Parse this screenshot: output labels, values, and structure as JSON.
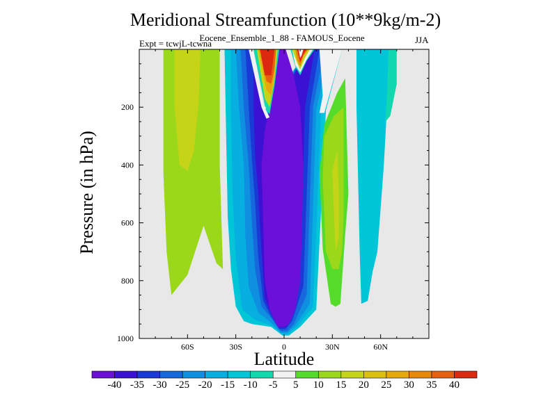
{
  "chart_data": {
    "type": "contour",
    "title": "Meridional Streamfunction (10**9kg/m-2)",
    "subtitle": "Eocene_Ensemble_1_88 - FAMOUS_Eocene",
    "expt_label": "Expt = tcwjL-tcwna",
    "season": "JJA",
    "xlabel": "Latitude",
    "ylabel": "Pressure (in hPa)",
    "xlim": [
      -90,
      90
    ],
    "ylim": [
      1000,
      0
    ],
    "x_ticks": [
      {
        "value": -60,
        "label": "60S"
      },
      {
        "value": -30,
        "label": "30S"
      },
      {
        "value": 0,
        "label": "0"
      },
      {
        "value": 30,
        "label": "30N"
      },
      {
        "value": 60,
        "label": "60N"
      }
    ],
    "y_ticks": [
      {
        "value": 200,
        "label": "200"
      },
      {
        "value": 400,
        "label": "400"
      },
      {
        "value": 600,
        "label": "600"
      },
      {
        "value": 800,
        "label": "800"
      },
      {
        "value": 1000,
        "label": "1000"
      }
    ],
    "background_color": "#e8e8e8",
    "levels": [
      {
        "label": "-40",
        "color": "#6a10d8"
      },
      {
        "label": "-35",
        "color": "#3b12d4"
      },
      {
        "label": "-30",
        "color": "#1a3ad8"
      },
      {
        "label": "-25",
        "color": "#1768dc"
      },
      {
        "label": "-20",
        "color": "#0f8fe0"
      },
      {
        "label": "-15",
        "color": "#07aee0"
      },
      {
        "label": "-10",
        "color": "#00c6d8"
      },
      {
        "label": "-5",
        "color": "#12d8b0"
      },
      {
        "label": "5",
        "color": "#f2f2f2"
      },
      {
        "label": "10",
        "color": "#55dc2a"
      },
      {
        "label": "15",
        "color": "#9bd81a"
      },
      {
        "label": "20",
        "color": "#c6d418"
      },
      {
        "label": "25",
        "color": "#dcc010"
      },
      {
        "label": "30",
        "color": "#e6a80a"
      },
      {
        "label": "35",
        "color": "#e8880a"
      },
      {
        "label": "40",
        "color": "#e66010"
      },
      {
        "label": "",
        "color": "#dc2a10"
      }
    ],
    "regions": [
      {
        "name": "sh-outer-cell",
        "color": "#9bd81a",
        "points": [
          [
            -75,
            0
          ],
          [
            -71,
            0
          ],
          [
            -47,
            0
          ],
          [
            -40,
            0
          ],
          [
            -40,
            400
          ],
          [
            -38,
            760
          ],
          [
            -42,
            740
          ],
          [
            -50,
            610
          ],
          [
            -60,
            780
          ],
          [
            -70,
            850
          ],
          [
            -73,
            700
          ],
          [
            -75,
            430
          ]
        ]
      },
      {
        "name": "sh-outer-core",
        "color": "#c6d418",
        "points": [
          [
            -68,
            0
          ],
          [
            -52,
            0
          ],
          [
            -53,
            180
          ],
          [
            -56,
            350
          ],
          [
            -60,
            420
          ],
          [
            -65,
            400
          ],
          [
            -68,
            200
          ]
        ]
      },
      {
        "name": "south-cell-outer",
        "color": "#00c6d8",
        "points": [
          [
            -37,
            0
          ],
          [
            -20,
            0
          ],
          [
            -15,
            170
          ],
          [
            -12,
            210
          ],
          [
            10,
            40
          ],
          [
            16,
            0
          ],
          [
            36,
            0
          ],
          [
            26,
            210
          ],
          [
            20,
            900
          ],
          [
            10,
            960
          ],
          [
            3,
            990
          ],
          [
            -1,
            990
          ],
          [
            -8,
            960
          ],
          [
            -20,
            950
          ],
          [
            -25,
            940
          ],
          [
            -30,
            890
          ],
          [
            -33,
            760
          ],
          [
            -35,
            580
          ],
          [
            -36,
            300
          ]
        ]
      },
      {
        "name": "south-cell-2",
        "color": "#07aee0",
        "points": [
          [
            -33,
            0
          ],
          [
            -21,
            0
          ],
          [
            -15,
            180
          ],
          [
            -11,
            220
          ],
          [
            10,
            40
          ],
          [
            15,
            0
          ],
          [
            30,
            0
          ],
          [
            23,
            210
          ],
          [
            18,
            890
          ],
          [
            8,
            960
          ],
          [
            2,
            985
          ],
          [
            -1,
            985
          ],
          [
            -8,
            955
          ],
          [
            -18,
            935
          ],
          [
            -26,
            900
          ],
          [
            -30,
            720
          ],
          [
            -32,
            500
          ],
          [
            -33,
            200
          ]
        ]
      },
      {
        "name": "south-cell-3",
        "color": "#0f8fe0",
        "points": [
          [
            -30,
            0
          ],
          [
            -22,
            0
          ],
          [
            -15,
            185
          ],
          [
            -10,
            225
          ],
          [
            10,
            40
          ],
          [
            15,
            0
          ],
          [
            28,
            0
          ],
          [
            20,
            210
          ],
          [
            16,
            880
          ],
          [
            7,
            955
          ],
          [
            2,
            980
          ],
          [
            -2,
            980
          ],
          [
            -8,
            945
          ],
          [
            -16,
            910
          ],
          [
            -22,
            820
          ],
          [
            -24,
            650
          ],
          [
            -25,
            400
          ],
          [
            -28,
            200
          ]
        ]
      },
      {
        "name": "south-cell-4",
        "color": "#1768dc",
        "points": [
          [
            -27,
            0
          ],
          [
            -22,
            0
          ],
          [
            -14,
            190
          ],
          [
            -10,
            230
          ],
          [
            10,
            40
          ],
          [
            14,
            0
          ],
          [
            25,
            0
          ],
          [
            18,
            200
          ],
          [
            14,
            850
          ],
          [
            6,
            950
          ],
          [
            2,
            975
          ],
          [
            -2,
            975
          ],
          [
            -7,
            935
          ],
          [
            -14,
            890
          ],
          [
            -18,
            760
          ],
          [
            -20,
            600
          ],
          [
            -22,
            400
          ],
          [
            -25,
            200
          ]
        ]
      },
      {
        "name": "south-cell-5",
        "color": "#1a3ad8",
        "points": [
          [
            -24,
            0
          ],
          [
            -20,
            0
          ],
          [
            -13,
            195
          ],
          [
            -9,
            235
          ],
          [
            10,
            45
          ],
          [
            13,
            0
          ],
          [
            22,
            0
          ],
          [
            16,
            200
          ],
          [
            12,
            820
          ],
          [
            5,
            940
          ],
          [
            1,
            968
          ],
          [
            -3,
            968
          ],
          [
            -8,
            925
          ],
          [
            -13,
            870
          ],
          [
            -16,
            720
          ],
          [
            -18,
            530
          ],
          [
            -20,
            380
          ],
          [
            -22,
            200
          ]
        ]
      },
      {
        "name": "south-cell-6",
        "color": "#3b12d4",
        "points": [
          [
            -19,
            0
          ],
          [
            -13,
            200
          ],
          [
            -9,
            240
          ],
          [
            10,
            50
          ],
          [
            11,
            0
          ],
          [
            19,
            0
          ],
          [
            13,
            200
          ],
          [
            10,
            800
          ],
          [
            4,
            935
          ],
          [
            1,
            962
          ],
          [
            -3,
            962
          ],
          [
            -8,
            915
          ],
          [
            -12,
            860
          ],
          [
            -14,
            700
          ],
          [
            -16,
            500
          ],
          [
            -18,
            370
          ],
          [
            -19,
            200
          ]
        ]
      },
      {
        "name": "south-cell-core",
        "color": "#6a10d8",
        "points": [
          [
            -3,
            0
          ],
          [
            1,
            0
          ],
          [
            6,
            90
          ],
          [
            10,
            200
          ],
          [
            12,
            400
          ],
          [
            11,
            650
          ],
          [
            10,
            800
          ],
          [
            7,
            900
          ],
          [
            3,
            950
          ],
          [
            0,
            960
          ],
          [
            -4,
            960
          ],
          [
            -9,
            900
          ],
          [
            -12,
            800
          ],
          [
            -13,
            600
          ],
          [
            -14,
            400
          ],
          [
            -12,
            280
          ],
          [
            -8,
            170
          ]
        ]
      },
      {
        "name": "white-gap-left",
        "color": "#f2f2f2",
        "points": [
          [
            -22,
            0
          ],
          [
            -19,
            0
          ],
          [
            -13,
            190
          ],
          [
            -9,
            235
          ],
          [
            -11,
            240
          ],
          [
            -14,
            200
          ]
        ]
      },
      {
        "name": "left-warm-cell",
        "color": "#12d8b0",
        "points": [
          [
            -19,
            0
          ],
          [
            -3,
            0
          ],
          [
            -6,
            130
          ],
          [
            -9,
            225
          ],
          [
            -12,
            195
          ]
        ]
      },
      {
        "name": "left-warm-2",
        "color": "#c6d418",
        "points": [
          [
            -17,
            0
          ],
          [
            -4,
            0
          ],
          [
            -6,
            110
          ],
          [
            -9,
            200
          ],
          [
            -12,
            170
          ]
        ]
      },
      {
        "name": "left-warm-3",
        "color": "#e6a80a",
        "points": [
          [
            -16,
            0
          ],
          [
            -5,
            0
          ],
          [
            -6,
            90
          ],
          [
            -8,
            160
          ],
          [
            -11,
            140
          ]
        ]
      },
      {
        "name": "left-warm-4",
        "color": "#e66010",
        "points": [
          [
            -15,
            0
          ],
          [
            -5,
            0
          ],
          [
            -6,
            70
          ],
          [
            -8,
            120
          ],
          [
            -11,
            110
          ]
        ]
      },
      {
        "name": "left-warm-core",
        "color": "#dc2a10",
        "points": [
          [
            -15,
            0
          ],
          [
            -6,
            0
          ],
          [
            -7,
            50
          ],
          [
            -8,
            90
          ],
          [
            -12,
            90
          ]
        ]
      },
      {
        "name": "right-warm-cell",
        "color": "#12d8b0",
        "points": [
          [
            4,
            0
          ],
          [
            19,
            0
          ],
          [
            14,
            40
          ],
          [
            10,
            90
          ],
          [
            7,
            60
          ]
        ]
      },
      {
        "name": "right-warm-2",
        "color": "#f2f2f2",
        "points": [
          [
            5,
            0
          ],
          [
            18,
            0
          ],
          [
            14,
            35
          ],
          [
            10,
            80
          ],
          [
            7,
            55
          ]
        ]
      },
      {
        "name": "right-warm-3",
        "color": "#c6d418",
        "points": [
          [
            5,
            0
          ],
          [
            16,
            0
          ],
          [
            13,
            30
          ],
          [
            10,
            70
          ],
          [
            8,
            45
          ]
        ]
      },
      {
        "name": "right-warm-4",
        "color": "#e8880a",
        "points": [
          [
            7,
            0
          ],
          [
            15,
            0
          ],
          [
            12,
            25
          ],
          [
            10,
            60
          ],
          [
            8,
            35
          ]
        ]
      },
      {
        "name": "right-warm-core",
        "color": "#dc2a10",
        "points": [
          [
            8,
            0
          ],
          [
            14,
            0
          ],
          [
            12,
            18
          ],
          [
            10,
            45
          ]
        ]
      },
      {
        "name": "right-warm-white",
        "color": "#f2f2f2",
        "points": [
          [
            9,
            0
          ],
          [
            12,
            0
          ],
          [
            11,
            20
          ],
          [
            10,
            30
          ]
        ]
      },
      {
        "name": "white-gap-right",
        "color": "#f2f2f2",
        "points": [
          [
            22,
            0
          ],
          [
            36,
            0
          ],
          [
            30,
            120
          ],
          [
            25,
            220
          ],
          [
            22,
            220
          ],
          [
            24,
            160
          ]
        ]
      },
      {
        "name": "nh-tropical-cell",
        "color": "#55dc2a",
        "points": [
          [
            22,
            430
          ],
          [
            25,
            260
          ],
          [
            33,
            150
          ],
          [
            38,
            100
          ],
          [
            39,
            300
          ],
          [
            40,
            500
          ],
          [
            38,
            640
          ],
          [
            36,
            800
          ],
          [
            35,
            880
          ],
          [
            32,
            890
          ],
          [
            29,
            880
          ],
          [
            24,
            690
          ]
        ]
      },
      {
        "name": "nh-tropical-core",
        "color": "#9bd81a",
        "points": [
          [
            24,
            450
          ],
          [
            25,
            300
          ],
          [
            31,
            230
          ],
          [
            37,
            200
          ],
          [
            37,
            400
          ],
          [
            37,
            580
          ],
          [
            36,
            700
          ],
          [
            34,
            760
          ],
          [
            30,
            760
          ],
          [
            26,
            700
          ]
        ]
      },
      {
        "name": "nh-tropical-inner",
        "color": "#c6d418",
        "points": [
          [
            30,
            420
          ],
          [
            33,
            350
          ],
          [
            34,
            500
          ],
          [
            34,
            650
          ],
          [
            32,
            700
          ],
          [
            31,
            560
          ]
        ]
      },
      {
        "name": "nh-polar-cell",
        "color": "#00c6d8",
        "points": [
          [
            45,
            0
          ],
          [
            65,
            0
          ],
          [
            64,
            200
          ],
          [
            62,
            400
          ],
          [
            60,
            550
          ],
          [
            58,
            700
          ],
          [
            55,
            770
          ],
          [
            52,
            870
          ],
          [
            48,
            880
          ],
          [
            47,
            700
          ],
          [
            46,
            450
          ],
          [
            45,
            200
          ]
        ]
      },
      {
        "name": "nh-polar-rim",
        "color": "#12d8b0",
        "points": [
          [
            65,
            0
          ],
          [
            70,
            0
          ],
          [
            70,
            120
          ],
          [
            66,
            230
          ],
          [
            63,
            250
          ],
          [
            64,
            150
          ]
        ]
      }
    ]
  }
}
